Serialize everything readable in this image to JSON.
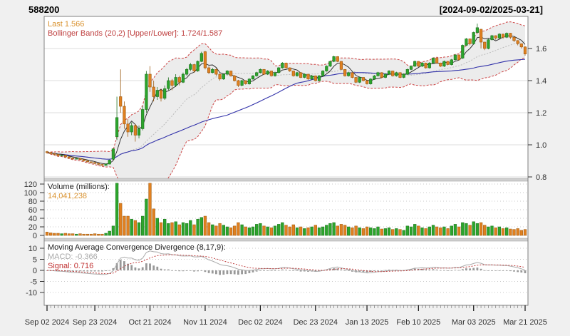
{
  "header": {
    "ticker": "588200",
    "date_range": "[2024-09-02/2025-03-21]"
  },
  "panels": {
    "main": {
      "legend_last": "Last 1.566",
      "legend_bbands": "Bollinger Bands (20,2) [Upper/Lower]: 1.724/1.587",
      "y_tick_labels": [
        "0.8",
        "1.0",
        "1.2",
        "1.4",
        "1.6"
      ],
      "y_tick_values": [
        0.8,
        1.0,
        1.2,
        1.4,
        1.6
      ]
    },
    "volume": {
      "legend_title": "Volume (millions):",
      "legend_value": "14,041,238",
      "y_tick_labels": [
        "0",
        "20",
        "40",
        "60",
        "80",
        "100",
        "120"
      ],
      "y_tick_values": [
        0,
        20,
        40,
        60,
        80,
        100,
        120
      ]
    },
    "macd": {
      "legend_title": "Moving Average Convergence Divergence (8,17,9):",
      "legend_macd": "MACD: -0.366",
      "legend_signal": "Signal: 0.716",
      "y_tick_labels": [
        "-10",
        "-5",
        "0",
        "5",
        "10"
      ],
      "y_tick_values": [
        -10,
        -5,
        0,
        5,
        10
      ]
    }
  },
  "x_axis": {
    "labels": [
      "Sep 02 2024",
      "Sep 23 2024",
      "Oct 21 2024",
      "Nov 11 2024",
      "Dec 02 2024",
      "Dec 23 2024",
      "Jan 13 2025",
      "Feb 10 2025",
      "Mar 03 2025",
      "Mar 21 2025"
    ],
    "label_indices": [
      0,
      13,
      28,
      43,
      58,
      73,
      87,
      101,
      116,
      130
    ]
  },
  "colors": {
    "up": "#2ca52c",
    "up_border": "#1d6f1d",
    "down": "#e08020",
    "down_border": "#9c5a12",
    "band_fill": "#ececec",
    "band_line": "#cc4444",
    "sma_fast": "#222222",
    "sma_slow": "#3333aa",
    "sma_mid": "#bbbbbb",
    "macd_line": "#aaaaaa",
    "signal_line": "#c04040",
    "hist": "#999999",
    "legend_last": "#d9922f",
    "legend_bbands": "#bf4040",
    "legend_value": "#d9922f",
    "legend_macd": "#a8a8a8",
    "legend_signal": "#c03030",
    "grid": "#dcdcdc",
    "grid_dot": "#c8c8c8",
    "axis_text": "#333333",
    "border": "#808080",
    "divider": "#cfcfcf"
  },
  "chart_data": [
    {
      "type": "candlestick",
      "title": "588200",
      "date_start": "2024-09-02",
      "date_end": "2025-03-21",
      "ylim": [
        0.8,
        1.8
      ],
      "last_close": 1.566,
      "overlays": {
        "bollinger_n": 20,
        "bollinger_sd": 2,
        "bollinger_upper_last": 1.724,
        "bollinger_lower_last": 1.587,
        "ma_fast_n": 5,
        "ma_slow_n": 50
      },
      "columns": [
        "open",
        "high",
        "low",
        "close",
        "volume_millions"
      ],
      "candles": [
        [
          0.958,
          0.962,
          0.945,
          0.952,
          8
        ],
        [
          0.952,
          0.955,
          0.94,
          0.945,
          6
        ],
        [
          0.945,
          0.948,
          0.935,
          0.94,
          5
        ],
        [
          0.94,
          0.943,
          0.928,
          0.932,
          5
        ],
        [
          0.932,
          0.94,
          0.93,
          0.935,
          4
        ],
        [
          0.935,
          0.936,
          0.92,
          0.925,
          5
        ],
        [
          0.925,
          0.928,
          0.914,
          0.918,
          4
        ],
        [
          0.918,
          0.92,
          0.908,
          0.912,
          4
        ],
        [
          0.912,
          0.918,
          0.91,
          0.915,
          3
        ],
        [
          0.915,
          0.916,
          0.904,
          0.908,
          4
        ],
        [
          0.908,
          0.91,
          0.896,
          0.9,
          3
        ],
        [
          0.9,
          0.902,
          0.89,
          0.894,
          3
        ],
        [
          0.894,
          0.896,
          0.886,
          0.89,
          3
        ],
        [
          0.89,
          0.892,
          0.88,
          0.884,
          4
        ],
        [
          0.884,
          0.886,
          0.874,
          0.878,
          3
        ],
        [
          0.878,
          0.88,
          0.868,
          0.872,
          3
        ],
        [
          0.872,
          0.882,
          0.87,
          0.88,
          5
        ],
        [
          0.88,
          0.908,
          0.878,
          0.905,
          10
        ],
        [
          0.91,
          0.978,
          0.906,
          0.975,
          22
        ],
        [
          1.05,
          1.3,
          1.03,
          1.17,
          122
        ],
        [
          1.3,
          1.47,
          1.2,
          1.24,
          75
        ],
        [
          1.24,
          1.27,
          1.1,
          1.13,
          45
        ],
        [
          1.13,
          1.16,
          1.05,
          1.08,
          45
        ],
        [
          1.08,
          1.14,
          1.06,
          1.12,
          38
        ],
        [
          1.12,
          1.13,
          1.02,
          1.06,
          35
        ],
        [
          1.06,
          1.12,
          1.04,
          1.1,
          30
        ],
        [
          1.1,
          1.24,
          1.09,
          1.22,
          45
        ],
        [
          1.22,
          1.46,
          1.2,
          1.44,
          85
        ],
        [
          1.44,
          1.49,
          1.33,
          1.36,
          122
        ],
        [
          1.36,
          1.4,
          1.27,
          1.3,
          62
        ],
        [
          1.3,
          1.36,
          1.28,
          1.34,
          40
        ],
        [
          1.34,
          1.35,
          1.27,
          1.29,
          30
        ],
        [
          1.29,
          1.37,
          1.28,
          1.35,
          38
        ],
        [
          1.35,
          1.42,
          1.34,
          1.4,
          28
        ],
        [
          1.4,
          1.41,
          1.34,
          1.37,
          30
        ],
        [
          1.37,
          1.44,
          1.36,
          1.42,
          32
        ],
        [
          1.42,
          1.43,
          1.37,
          1.39,
          25
        ],
        [
          1.39,
          1.45,
          1.385,
          1.44,
          30
        ],
        [
          1.44,
          1.48,
          1.43,
          1.47,
          28
        ],
        [
          1.47,
          1.51,
          1.46,
          1.5,
          35
        ],
        [
          1.5,
          1.505,
          1.45,
          1.46,
          25
        ],
        [
          1.46,
          1.525,
          1.455,
          1.52,
          38
        ],
        [
          1.52,
          1.58,
          1.515,
          1.57,
          42
        ],
        [
          1.58,
          1.585,
          1.47,
          1.48,
          45
        ],
        [
          1.48,
          1.49,
          1.44,
          1.45,
          30
        ],
        [
          1.45,
          1.48,
          1.445,
          1.47,
          25
        ],
        [
          1.47,
          1.475,
          1.43,
          1.44,
          22
        ],
        [
          1.44,
          1.445,
          1.4,
          1.41,
          28
        ],
        [
          1.41,
          1.445,
          1.405,
          1.44,
          24
        ],
        [
          1.44,
          1.465,
          1.435,
          1.46,
          20
        ],
        [
          1.46,
          1.462,
          1.425,
          1.43,
          18
        ],
        [
          1.43,
          1.435,
          1.395,
          1.4,
          22
        ],
        [
          1.4,
          1.405,
          1.36,
          1.37,
          30
        ],
        [
          1.37,
          1.405,
          1.365,
          1.4,
          25
        ],
        [
          1.4,
          1.402,
          1.375,
          1.38,
          20
        ],
        [
          1.38,
          1.415,
          1.375,
          1.41,
          18
        ],
        [
          1.41,
          1.435,
          1.405,
          1.43,
          20
        ],
        [
          1.43,
          1.455,
          1.425,
          1.45,
          26
        ],
        [
          1.45,
          1.475,
          1.445,
          1.47,
          28
        ],
        [
          1.47,
          1.472,
          1.435,
          1.44,
          22
        ],
        [
          1.44,
          1.465,
          1.435,
          1.46,
          20
        ],
        [
          1.46,
          1.462,
          1.425,
          1.43,
          18
        ],
        [
          1.43,
          1.455,
          1.425,
          1.45,
          22
        ],
        [
          1.45,
          1.485,
          1.445,
          1.48,
          26
        ],
        [
          1.48,
          1.515,
          1.475,
          1.51,
          30
        ],
        [
          1.51,
          1.512,
          1.475,
          1.48,
          24
        ],
        [
          1.48,
          1.482,
          1.455,
          1.46,
          20
        ],
        [
          1.46,
          1.462,
          1.425,
          1.43,
          25
        ],
        [
          1.43,
          1.455,
          1.425,
          1.45,
          18
        ],
        [
          1.45,
          1.452,
          1.415,
          1.42,
          20
        ],
        [
          1.42,
          1.445,
          1.415,
          1.44,
          16
        ],
        [
          1.44,
          1.442,
          1.405,
          1.41,
          18
        ],
        [
          1.41,
          1.435,
          1.405,
          1.43,
          20
        ],
        [
          1.43,
          1.432,
          1.395,
          1.4,
          24
        ],
        [
          1.4,
          1.435,
          1.395,
          1.43,
          18
        ],
        [
          1.43,
          1.465,
          1.425,
          1.46,
          20
        ],
        [
          1.46,
          1.495,
          1.455,
          1.49,
          24
        ],
        [
          1.49,
          1.525,
          1.485,
          1.52,
          28
        ],
        [
          1.52,
          1.555,
          1.515,
          1.55,
          30
        ],
        [
          1.55,
          1.552,
          1.515,
          1.52,
          22
        ],
        [
          1.52,
          1.522,
          1.465,
          1.47,
          26
        ],
        [
          1.47,
          1.472,
          1.425,
          1.43,
          24
        ],
        [
          1.43,
          1.455,
          1.425,
          1.45,
          20
        ],
        [
          1.45,
          1.452,
          1.415,
          1.42,
          18
        ],
        [
          1.42,
          1.422,
          1.385,
          1.39,
          22
        ],
        [
          1.39,
          1.425,
          1.385,
          1.42,
          18
        ],
        [
          1.42,
          1.422,
          1.395,
          1.4,
          16
        ],
        [
          1.4,
          1.402,
          1.375,
          1.38,
          20
        ],
        [
          1.38,
          1.415,
          1.375,
          1.41,
          18
        ],
        [
          1.41,
          1.435,
          1.405,
          1.43,
          16
        ],
        [
          1.43,
          1.455,
          1.425,
          1.45,
          20
        ],
        [
          1.45,
          1.452,
          1.415,
          1.42,
          15
        ],
        [
          1.42,
          1.445,
          1.415,
          1.44,
          16
        ],
        [
          1.44,
          1.465,
          1.435,
          1.46,
          18
        ],
        [
          1.46,
          1.462,
          1.425,
          1.43,
          14
        ],
        [
          1.43,
          1.455,
          1.425,
          1.45,
          16
        ],
        [
          1.45,
          1.452,
          1.415,
          1.42,
          14
        ],
        [
          1.42,
          1.445,
          1.415,
          1.44,
          12
        ],
        [
          1.44,
          1.475,
          1.435,
          1.47,
          22
        ],
        [
          1.47,
          1.495,
          1.465,
          1.49,
          20
        ],
        [
          1.49,
          1.525,
          1.485,
          1.52,
          26
        ],
        [
          1.52,
          1.522,
          1.485,
          1.49,
          22
        ],
        [
          1.49,
          1.515,
          1.485,
          1.51,
          18
        ],
        [
          1.51,
          1.512,
          1.475,
          1.48,
          16
        ],
        [
          1.48,
          1.515,
          1.475,
          1.51,
          20
        ],
        [
          1.51,
          1.545,
          1.505,
          1.54,
          24
        ],
        [
          1.54,
          1.542,
          1.505,
          1.51,
          20
        ],
        [
          1.51,
          1.512,
          1.485,
          1.49,
          18
        ],
        [
          1.49,
          1.525,
          1.485,
          1.52,
          20
        ],
        [
          1.52,
          1.522,
          1.495,
          1.5,
          16
        ],
        [
          1.5,
          1.535,
          1.495,
          1.53,
          22
        ],
        [
          1.53,
          1.565,
          1.525,
          1.56,
          26
        ],
        [
          1.56,
          1.562,
          1.525,
          1.53,
          20
        ],
        [
          1.54,
          1.625,
          1.535,
          1.62,
          30
        ],
        [
          1.62,
          1.665,
          1.615,
          1.66,
          28
        ],
        [
          1.66,
          1.662,
          1.62,
          1.63,
          24
        ],
        [
          1.63,
          1.705,
          1.625,
          1.7,
          32
        ],
        [
          1.7,
          1.755,
          1.695,
          1.73,
          28
        ],
        [
          1.72,
          1.722,
          1.6,
          1.64,
          30
        ],
        [
          1.64,
          1.642,
          1.59,
          1.6,
          24
        ],
        [
          1.6,
          1.66,
          1.595,
          1.655,
          20
        ],
        [
          1.655,
          1.685,
          1.65,
          1.68,
          22
        ],
        [
          1.68,
          1.682,
          1.655,
          1.665,
          18
        ],
        [
          1.665,
          1.695,
          1.66,
          1.69,
          20
        ],
        [
          1.69,
          1.692,
          1.66,
          1.67,
          16
        ],
        [
          1.67,
          1.7,
          1.665,
          1.695,
          18
        ],
        [
          1.695,
          1.697,
          1.66,
          1.67,
          15
        ],
        [
          1.67,
          1.672,
          1.64,
          1.65,
          14
        ],
        [
          1.65,
          1.652,
          1.62,
          1.63,
          16
        ],
        [
          1.63,
          1.632,
          1.6,
          1.61,
          12
        ],
        [
          1.61,
          1.615,
          1.555,
          1.566,
          14
        ]
      ]
    },
    {
      "type": "bar",
      "title": "Volume (millions)",
      "ylim": [
        0,
        120
      ],
      "last_volume_shares": "14,041,238",
      "source": "volume_millions column of candles above"
    },
    {
      "type": "line",
      "title": "Moving Average Convergence Divergence (8,17,9)",
      "ylim": [
        -10,
        10
      ],
      "macd_last": -0.366,
      "signal_last": 0.716,
      "series": [
        "macd",
        "signal",
        "histogram"
      ],
      "derived_from": "close prices (percent EMA MACD 8/17, signal 9)"
    }
  ]
}
